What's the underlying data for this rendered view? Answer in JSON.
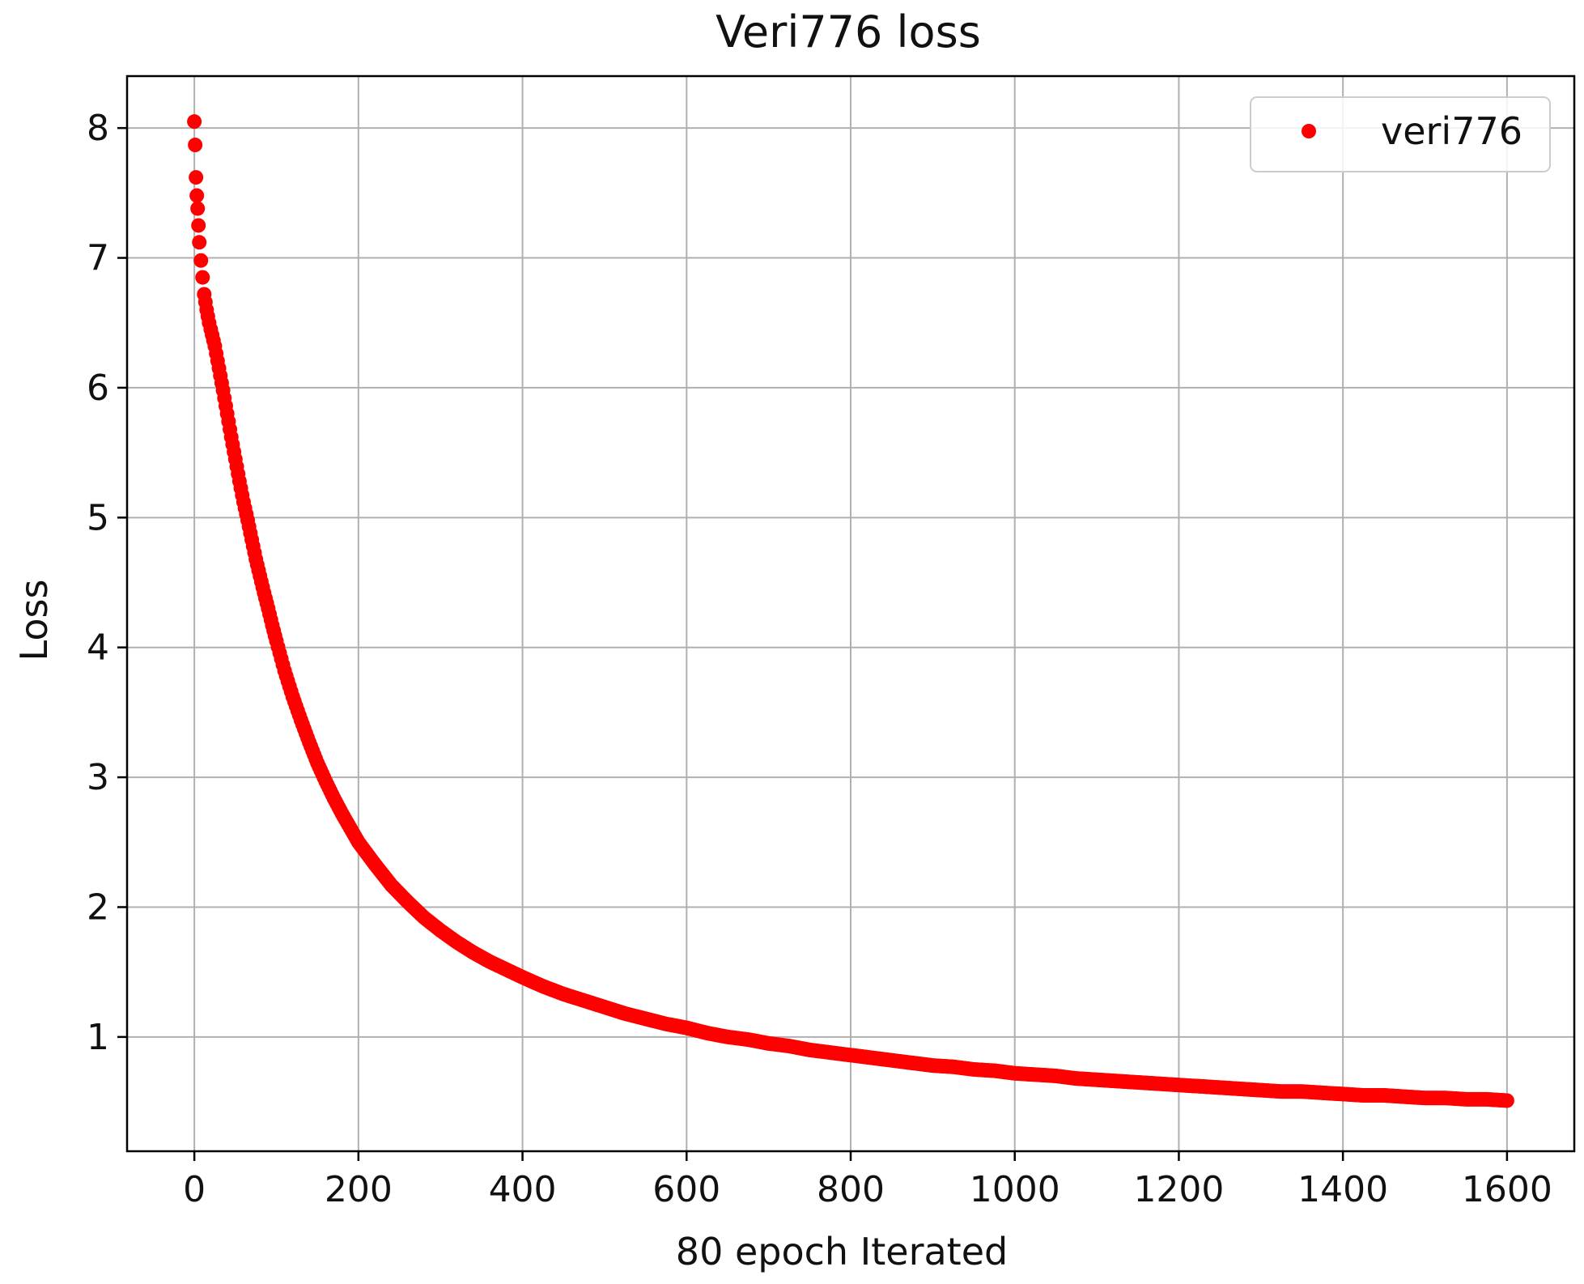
{
  "chart_data": {
    "type": "scatter",
    "title": "Veri776 loss",
    "xlabel": "80 epoch Iterated",
    "ylabel": "Loss",
    "xlim": [
      -82,
      1682
    ],
    "ylim": [
      0.12,
      8.4
    ],
    "xticks": [
      0,
      200,
      400,
      600,
      800,
      1000,
      1200,
      1400,
      1600
    ],
    "yticks": [
      1,
      2,
      3,
      4,
      5,
      6,
      7,
      8
    ],
    "xtick_labels": [
      "0",
      "200",
      "400",
      "600",
      "800",
      "1000",
      "1200",
      "1400",
      "1600"
    ],
    "ytick_labels": [
      "1",
      "2",
      "3",
      "4",
      "5",
      "6",
      "7",
      "8"
    ],
    "grid": true,
    "legend_position": "top-right",
    "series": [
      {
        "name": "veri776",
        "color": "#ff0000",
        "marker": "circle",
        "x": [
          0,
          1,
          2,
          3,
          4,
          5,
          6,
          8,
          10,
          12,
          15,
          18,
          20,
          25,
          30,
          35,
          40,
          45,
          50,
          55,
          60,
          65,
          70,
          75,
          80,
          85,
          90,
          95,
          100,
          110,
          120,
          130,
          140,
          150,
          160,
          170,
          180,
          190,
          200,
          220,
          240,
          260,
          280,
          300,
          320,
          340,
          360,
          380,
          400,
          425,
          450,
          475,
          500,
          525,
          550,
          575,
          600,
          625,
          650,
          675,
          700,
          725,
          750,
          775,
          800,
          825,
          850,
          875,
          900,
          925,
          950,
          975,
          1000,
          1025,
          1050,
          1075,
          1100,
          1125,
          1150,
          1175,
          1200,
          1225,
          1250,
          1275,
          1300,
          1325,
          1350,
          1375,
          1400,
          1425,
          1450,
          1475,
          1500,
          1525,
          1550,
          1575,
          1600
        ],
        "y": [
          8.05,
          7.87,
          7.62,
          7.48,
          7.38,
          7.25,
          7.12,
          6.98,
          6.85,
          6.72,
          6.6,
          6.5,
          6.45,
          6.32,
          6.15,
          5.98,
          5.8,
          5.62,
          5.45,
          5.28,
          5.12,
          4.98,
          4.83,
          4.68,
          4.55,
          4.42,
          4.3,
          4.17,
          4.05,
          3.82,
          3.62,
          3.44,
          3.27,
          3.11,
          2.97,
          2.84,
          2.72,
          2.61,
          2.5,
          2.33,
          2.17,
          2.04,
          1.92,
          1.82,
          1.73,
          1.65,
          1.58,
          1.52,
          1.46,
          1.39,
          1.33,
          1.28,
          1.23,
          1.18,
          1.14,
          1.1,
          1.07,
          1.03,
          1.0,
          0.98,
          0.95,
          0.93,
          0.9,
          0.88,
          0.86,
          0.84,
          0.82,
          0.8,
          0.78,
          0.77,
          0.75,
          0.74,
          0.72,
          0.71,
          0.7,
          0.68,
          0.67,
          0.66,
          0.65,
          0.64,
          0.63,
          0.62,
          0.61,
          0.6,
          0.59,
          0.58,
          0.58,
          0.57,
          0.56,
          0.55,
          0.55,
          0.54,
          0.53,
          0.53,
          0.52,
          0.52,
          0.51
        ]
      }
    ]
  }
}
